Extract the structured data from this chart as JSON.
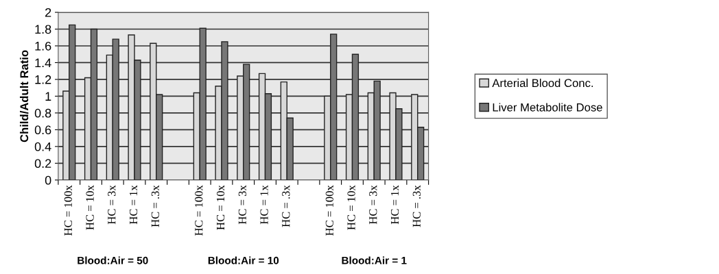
{
  "chart_data": {
    "type": "bar",
    "ylabel": "Child/Adult Ratio",
    "categories": [
      "HC = 100x",
      "HC = 10x",
      "HC = 3x",
      "HC = 1x",
      "HC = .3x",
      null,
      "HC = 100x",
      "HC = 10x",
      "HC = 3x",
      "HC = 1x",
      "HC = .3x",
      null,
      "HC = 100x",
      "HC = 10x",
      "HC = 3x",
      "HC = 1x",
      "HC = .3x"
    ],
    "series": [
      {
        "name": "Arterial Blood Conc.",
        "color": "#d8d8d8",
        "values": [
          1.06,
          1.22,
          1.49,
          1.73,
          1.63,
          null,
          1.04,
          1.12,
          1.24,
          1.27,
          1.17,
          null,
          1.0,
          1.02,
          1.04,
          1.04,
          1.02
        ]
      },
      {
        "name": "Liver Metabolite Dose",
        "color": "#777777",
        "values": [
          1.85,
          1.8,
          1.68,
          1.43,
          1.02,
          null,
          1.81,
          1.65,
          1.38,
          1.03,
          0.74,
          null,
          1.74,
          1.5,
          1.18,
          0.85,
          0.63
        ]
      }
    ],
    "ylim": [
      0,
      2
    ],
    "yticks": [
      0,
      0.2,
      0.4,
      0.6,
      0.8,
      1,
      1.2,
      1.4,
      1.6,
      1.8,
      2
    ],
    "annotations": [
      "Blood:Air = 50",
      "Blood:Air = 10",
      "Blood:Air = 1"
    ],
    "grid": "y",
    "legend": "right"
  }
}
